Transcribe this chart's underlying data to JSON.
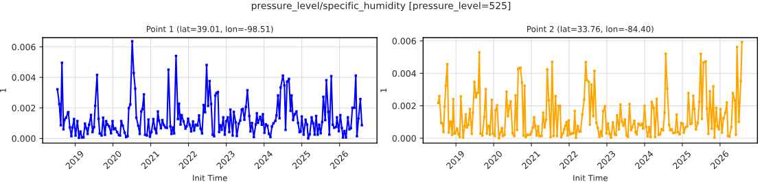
{
  "chart_data": [
    {
      "type": "line",
      "title": "Point 1 (lat=39.01, lon=-98.51)",
      "xlabel": "Init Time",
      "ylabel": "1",
      "annotations": [
        "pressure_level/specific_humidity [pressure_level=525]"
      ],
      "xlim": [
        2018.14,
        2026.99
      ],
      "xticks": [
        2019,
        2020,
        2021,
        2022,
        2023,
        2024,
        2025,
        2026
      ],
      "ylim": [
        -0.0003,
        0.0066
      ],
      "yticks": [
        {
          "value": 0,
          "label": "0.000"
        },
        {
          "value": 0.002,
          "label": "0.002"
        },
        {
          "value": 0.004,
          "label": "0.004"
        },
        {
          "value": 0.006,
          "label": "0.006"
        }
      ],
      "grid": true,
      "marker": "square",
      "line_style": "solid",
      "x": [
        2018.53,
        2018.58,
        2018.62,
        2018.65,
        2018.69,
        2018.72,
        2018.76,
        2018.81,
        2018.82,
        2018.86,
        2018.9,
        2018.93,
        2018.97,
        2019.01,
        2019.06,
        2019.1,
        2019.14,
        2019.18,
        2019.22,
        2019.26,
        2019.3,
        2019.33,
        2019.37,
        2019.42,
        2019.46,
        2019.5,
        2019.53,
        2019.58,
        2019.62,
        2019.65,
        2019.7,
        2019.74,
        2019.79,
        2019.82,
        2019.86,
        2019.9,
        2019.95,
        2019.99,
        2020.02,
        2020.06,
        2020.11,
        2020.16,
        2020.19,
        2020.22,
        2020.26,
        2020.31,
        2020.35,
        2020.39,
        2020.42,
        2020.46,
        2020.51,
        2020.55,
        2020.59,
        2020.62,
        2020.67,
        2020.71,
        2020.75,
        2020.78,
        2020.82,
        2020.85,
        2020.9,
        2020.94,
        2020.98,
        2021.02,
        2021.07,
        2021.11,
        2021.15,
        2021.19,
        2021.22,
        2021.27,
        2021.31,
        2021.35,
        2021.39,
        2021.43,
        2021.47,
        2021.52,
        2021.55,
        2021.59,
        2021.62,
        2021.67,
        2021.72,
        2021.75,
        2021.79,
        2021.82,
        2021.87,
        2021.92,
        2021.95,
        2021.99,
        2022.03,
        2022.07,
        2022.12,
        2022.15,
        2022.19,
        2022.24,
        2022.28,
        2022.32,
        2022.36,
        2022.4,
        2022.44,
        2022.48,
        2022.52,
        2022.56,
        2022.6,
        2022.64,
        2022.68,
        2022.71,
        2022.74,
        2022.78,
        2022.81,
        2022.84,
        2022.87,
        2022.88,
        2022.92,
        2022.96,
        2023.0,
        2023.04,
        2023.08,
        2023.11,
        2023.17,
        2023.2,
        2023.25,
        2023.28,
        2023.33,
        2023.37,
        2023.41,
        2023.44,
        2023.48,
        2023.52,
        2023.56,
        2023.61,
        2023.64,
        2023.68,
        2023.73,
        2023.78,
        2023.81,
        2023.84,
        2023.9,
        2023.94,
        2023.97,
        2024.01,
        2024.05,
        2024.09,
        2024.13,
        2024.17,
        2024.21,
        2024.25,
        2024.3,
        2024.33,
        2024.37,
        2024.41,
        2024.44,
        2024.5,
        2024.54,
        2024.57,
        2024.61,
        2024.66,
        2024.7,
        2024.73,
        2024.77,
        2024.81,
        2024.86,
        2024.9,
        2024.94,
        2024.97,
        2025.0,
        2025.05,
        2025.1,
        2025.14,
        2025.17,
        2025.21,
        2025.26,
        2025.3,
        2025.34,
        2025.38,
        2025.42,
        2025.46,
        2025.5,
        2025.54,
        2025.57,
        2025.62,
        2025.65,
        2025.7,
        2025.73,
        2025.78,
        2025.82,
        2025.86,
        2025.91,
        2025.93,
        2025.98,
        2026.02,
        2026.06,
        2026.09,
        2026.13,
        2026.17,
        2026.22,
        2026.26,
        2026.3,
        2026.34,
        2026.39,
        2026.43,
        2026.46,
        2026.5,
        2026.55,
        2026.59
      ],
      "series": [
        {
          "color": "#0000ff",
          "values": [
            0.00322,
            0.00226,
            0.00087,
            0.00496,
            0.0006,
            0.00124,
            0.00136,
            0.00169,
            0.00172,
            0.00072,
            0.00015,
            0.00072,
            0.00127,
            0.00019,
            0.00114,
            4e-05,
            0.00045,
            6e-05,
            7e-05,
            0.00097,
            0.00067,
            0.0003,
            0.0009,
            0.00154,
            0.00042,
            0.00075,
            0.00214,
            0.00416,
            0.00129,
            0.00033,
            0.00019,
            0.00136,
            0.00024,
            0.00114,
            0.0009,
            0.00079,
            0.00034,
            0.00114,
            0.0006,
            0.00067,
            0.00042,
            0.00022,
            0.00019,
            0.00114,
            0.00084,
            0.00039,
            9e-05,
            0.00015,
            0.00199,
            0.00222,
            0.00637,
            0.00428,
            0.00327,
            0.00136,
            0.00084,
            0.0003,
            0.00177,
            0.00192,
            0.00289,
            0.00024,
            0.00019,
            0.00124,
            0.00012,
            0.00042,
            0.00127,
            0.00064,
            0.00034,
            0.00177,
            0.00117,
            0.00067,
            0.0012,
            0.00087,
            0.00072,
            0.00069,
            0.00451,
            0.00079,
            0.0003,
            0.00072,
            0.00033,
            0.00541,
            0.00127,
            0.00228,
            0.00091,
            0.00153,
            0.00112,
            0.00064,
            0.00079,
            0.00129,
            0.0009,
            0.00046,
            0.00112,
            0.00052,
            0.0009,
            0.00085,
            0.00151,
            0.00064,
            0.00033,
            0.00219,
            0.00172,
            0.00481,
            0.00213,
            0.00376,
            0.00226,
            0.00024,
            0.00015,
            0.00282,
            0.00297,
            0.00304,
            0.00042,
            0.00087,
            0.00079,
            0.00057,
            0.00138,
            0.00025,
            0.00114,
            0.00138,
            0.00042,
            0.00189,
            0.00019,
            0.00174,
            0.00106,
            0.00016,
            0.00097,
            0.00117,
            0.00189,
            0.00193,
            0.00123,
            0.00207,
            0.00315,
            0.00147,
            0.00046,
            0.00102,
            9e-05,
            0.00091,
            0.00165,
            0.00102,
            0.00142,
            0.0009,
            0.00159,
            0.00037,
            0.00093,
            0.00084,
            0.00031,
            9e-05,
            0.00079,
            0.00099,
            0.00115,
            0.00151,
            0.00282,
            0.00133,
            0.00334,
            0.00412,
            0.00348,
            0.00057,
            0.00372,
            0.0039,
            0.00181,
            0.00282,
            0.0012,
            0.00159,
            0.00177,
            0.00102,
            0.00042,
            0.00045,
            0.00144,
            0.00025,
            0.00123,
            0.0009,
            1e-05,
            0.00027,
            0.00138,
            0.00099,
            0.00025,
            0.00147,
            0.00025,
            0.0009,
            0.00034,
            0.00108,
            0.00273,
            0.0012,
            0.00382,
            0.00174,
            0.00025,
            0.00408,
            0.0009,
            0.0007,
            0.00076,
            0.00138,
            0.00048,
            0.00153,
            0.00069,
            6e-05,
            0.00049,
            6e-05,
            0.00138,
            0.0006,
            0.00067,
            0.00201,
            0.00201,
            0.00412,
            0.00015,
            0.0013,
            0.00258,
            0.00087
          ]
        }
      ]
    },
    {
      "type": "line",
      "title": "Point 2 (lat=33.76, lon=-84.40)",
      "xlabel": "Init Time",
      "ylabel": "1",
      "xlim": [
        2018.13,
        2026.99
      ],
      "xticks": [
        2019,
        2020,
        2021,
        2022,
        2023,
        2024,
        2025,
        2026
      ],
      "ylim": [
        -0.0003,
        0.0062
      ],
      "yticks": [
        {
          "value": 0,
          "label": "0.000"
        },
        {
          "value": 0.002,
          "label": "0.002"
        },
        {
          "value": 0.004,
          "label": "0.004"
        },
        {
          "value": 0.006,
          "label": "0.006"
        }
      ],
      "grid": true,
      "marker": "square",
      "line_style": "solid",
      "x": [
        2018.53,
        2018.56,
        2018.61,
        2018.64,
        2018.67,
        2018.7,
        2018.73,
        2018.77,
        2018.81,
        2018.85,
        2018.87,
        2018.9,
        2018.93,
        2018.96,
        2018.98,
        2019.03,
        2019.07,
        2019.1,
        2019.13,
        2019.19,
        2019.23,
        2019.26,
        2019.29,
        2019.33,
        2019.37,
        2019.42,
        2019.45,
        2019.49,
        2019.53,
        2019.56,
        2019.59,
        2019.62,
        2019.65,
        2019.7,
        2019.75,
        2019.79,
        2019.82,
        2019.85,
        2019.88,
        2019.9,
        2019.95,
        2019.98,
        2020.03,
        2020.05,
        2020.09,
        2020.14,
        2020.18,
        2020.22,
        2020.25,
        2020.29,
        2020.34,
        2020.38,
        2020.42,
        2020.45,
        2020.5,
        2020.53,
        2020.55,
        2020.58,
        2020.62,
        2020.65,
        2020.68,
        2020.71,
        2020.75,
        2020.79,
        2020.82,
        2020.85,
        2020.9,
        2020.94,
        2020.98,
        2021.0,
        2021.04,
        2021.07,
        2021.1,
        2021.14,
        2021.18,
        2021.21,
        2021.24,
        2021.27,
        2021.31,
        2021.35,
        2021.39,
        2021.42,
        2021.46,
        2021.51,
        2021.55,
        2021.59,
        2021.64,
        2021.68,
        2021.72,
        2021.76,
        2021.79,
        2021.84,
        2021.87,
        2021.9,
        2021.93,
        2021.96,
        2021.99,
        2022.02,
        2022.05,
        2022.08,
        2022.12,
        2022.15,
        2022.18,
        2022.23,
        2022.27,
        2022.3,
        2022.35,
        2022.4,
        2022.44,
        2022.47,
        2022.52,
        2022.55,
        2022.59,
        2022.64,
        2022.67,
        2022.72,
        2022.76,
        2022.8,
        2022.84,
        2022.87,
        2022.9,
        2022.95,
        2022.99,
        2023.03,
        2023.07,
        2023.11,
        2023.16,
        2023.21,
        2023.24,
        2023.27,
        2023.32,
        2023.36,
        2023.4,
        2023.44,
        2023.48,
        2023.52,
        2023.56,
        2023.6,
        2023.64,
        2023.67,
        2023.73,
        2023.76,
        2023.79,
        2023.84,
        2023.89,
        2023.93,
        2023.96,
        2024.0,
        2024.04,
        2024.08,
        2024.12,
        2024.16,
        2024.19,
        2024.24,
        2024.28,
        2024.32,
        2024.37,
        2024.41,
        2024.45,
        2024.49,
        2024.53,
        2024.56,
        2024.6,
        2024.65,
        2024.68,
        2024.72,
        2024.76,
        2024.81,
        2024.85,
        2024.88,
        2024.93,
        2024.97,
        2025.01,
        2025.04,
        2025.08,
        2025.13,
        2025.16,
        2025.21,
        2025.25,
        2025.29,
        2025.32,
        2025.36,
        2025.41,
        2025.45,
        2025.49,
        2025.52,
        2025.56,
        2025.62,
        2025.65,
        2025.69,
        2025.73,
        2025.78,
        2025.82,
        2025.85,
        2025.9,
        2025.93,
        2025.97,
        2026.01,
        2026.05,
        2026.09,
        2026.14,
        2026.18,
        2026.21,
        2026.25,
        2026.3,
        2026.34,
        2026.39,
        2026.42,
        2026.45,
        2026.5,
        2026.55,
        2026.58
      ],
      "series": [
        {
          "color": "#ffa500",
          "values": [
            0.00217,
            0.00259,
            0.00094,
            0.00091,
            0.00038,
            0.00194,
            0.00324,
            0.00457,
            0.00035,
            0.00101,
            0.00101,
            0.00021,
            0.00241,
            0.00028,
            0.0003,
            0.00059,
            0.00024,
            7e-05,
            0.00257,
            3e-05,
            0.00073,
            0.00147,
            0.00066,
            0.00083,
            0.0018,
            0.00027,
            0.00157,
            0.00348,
            0.00252,
            0.00278,
            0.00281,
            0.0053,
            0.00028,
            0.00017,
            0.00131,
            0.00303,
            0.00028,
            0.00076,
            0.00076,
            0.00022,
            0.00236,
            0.00027,
            0.00014,
            0.00171,
            0.00203,
            0.0,
            0.00035,
            0.00062,
            0.00014,
            0.00021,
            0.00287,
            0.00136,
            0.00199,
            0.00227,
            0.00031,
            0.0002,
            0.00014,
            0.00264,
            0.00052,
            0.00427,
            0.00432,
            0.00434,
            0.00343,
            0.00017,
            0.00324,
            7e-05,
            0.00021,
            0.00021,
            0.00024,
            0.00038,
            0.00066,
            0.00129,
            0.00076,
            0.00017,
            0.00073,
            0.00014,
            0.00014,
            0.00014,
            0.00157,
            0.00066,
            0.00115,
            0.00425,
            0.00234,
            7e-05,
            0.00471,
            0.00014,
            0.00259,
            0.00014,
            0.00199,
            0.00199,
            6e-05,
            0.00031,
            0.00056,
            0.00077,
            0.00099,
            0.00017,
            0.0011,
            0.00024,
            0.00027,
            0.00029,
            0.00031,
            0.00168,
            3e-05,
            0.00076,
            0.00041,
            0.00041,
            0.00147,
            0.00238,
            0.00469,
            0.00359,
            0.00348,
            0.00084,
            0.00331,
            0.00136,
            0.00415,
            0.00094,
            0.00063,
            7e-05,
            0.00043,
            0.00013,
            0.00166,
            0.00197,
            0.00029,
            0.0009,
            0.00027,
            3e-05,
            0.00098,
            0.00024,
            0.0002,
            0.0014,
            0.00055,
            0.00208,
            0.00103,
            0.00077,
            0.00115,
            0.00017,
            8e-05,
            0.00211,
            0.0005,
            0.00066,
            0.00108,
            0.00038,
            0.00024,
            0.0009,
            0.0008,
            0.0009,
            0.00059,
            0.00199,
            0.00069,
            0.0001,
            0.00069,
            7e-05,
            0.00224,
            0.00187,
            7e-05,
            0.00243,
            0.00021,
            0.00024,
            0.00055,
            0.00048,
            0.00157,
            0.0052,
            0.00306,
            0.00083,
            0.00049,
            0.00055,
            0.00031,
            0.00035,
            0.00145,
            0.00038,
            0.00024,
            0.00094,
            0.0009,
            0.00034,
            0.00066,
            0.00073,
            0.00278,
            0.00087,
            0.00091,
            0.00262,
            0.0018,
            0.00055,
            0.00094,
            0.00224,
            0.0052,
            0.00119,
            0.00467,
            0.00474,
            0.00182,
            0.00027,
            0.0029,
            0.00059,
            0.0032,
            3e-05,
            0.00187,
            0.00073,
            0.00055,
            0.0018,
            0.00035,
            0.00122,
            0.00157,
            0.0022,
            0.00014,
            0.0001,
            0.00069,
            0.00278,
            0.00234,
            0.00021,
            0.00562,
            0.00101,
            0.00352,
            0.00593
          ]
        }
      ]
    }
  ]
}
